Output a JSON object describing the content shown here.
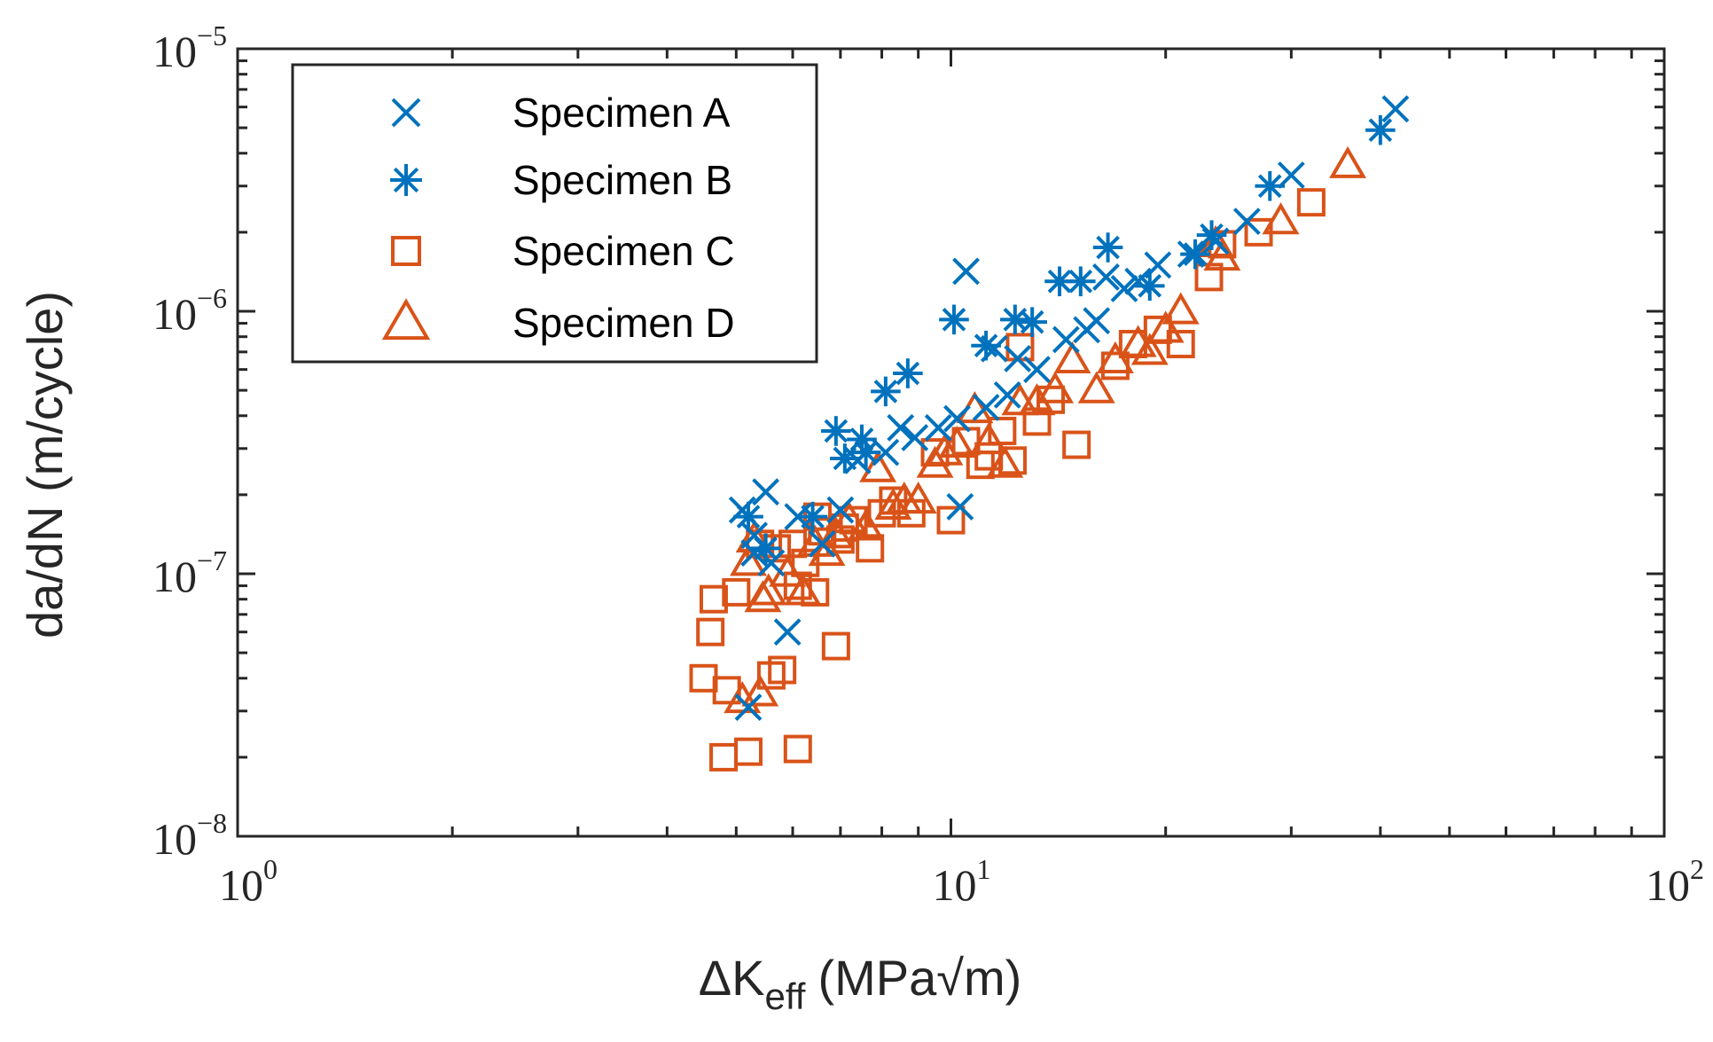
{
  "chart_data": {
    "type": "scatter",
    "title": "",
    "xlabel": {
      "main": "ΔK",
      "sub": "eff",
      "unit": "(MPa√m)"
    },
    "ylabel": "da/dN (m/cycle)",
    "xscale": "log",
    "yscale": "log",
    "xlim": [
      1,
      100
    ],
    "ylim": [
      1e-08,
      1e-05
    ],
    "xticks": [
      {
        "value": 1,
        "base": "10",
        "exp": "0"
      },
      {
        "value": 10,
        "base": "10",
        "exp": "1"
      },
      {
        "value": 100,
        "base": "10",
        "exp": "2"
      }
    ],
    "yticks": [
      {
        "value": 1e-08,
        "base": "10",
        "exp": "−8"
      },
      {
        "value": 1e-07,
        "base": "10",
        "exp": "−7"
      },
      {
        "value": 1e-06,
        "base": "10",
        "exp": "−6"
      },
      {
        "value": 1e-05,
        "base": "10",
        "exp": "−5"
      }
    ],
    "grid": false,
    "legend_position": "top-left",
    "series": [
      {
        "name": "Specimen A",
        "marker": "x",
        "color": "#0072BD",
        "x": [
          5.1,
          5.5,
          5.2,
          5.9,
          5.3,
          6.1,
          5.6,
          7.0,
          7.4,
          8.1,
          8.9,
          9.6,
          10.2,
          10.3,
          10.5,
          11.5,
          11.2,
          12.4,
          13.2,
          14.5,
          15.5,
          16.5,
          17.5,
          19.5,
          18.3,
          21.7,
          23.5,
          26.0,
          30.0,
          42.0,
          5.3,
          8.5,
          6.6,
          12.0,
          16.0
        ],
        "y": [
          1.75e-07,
          2.05e-07,
          3.1e-08,
          6e-08,
          1.4e-07,
          1.65e-07,
          1.1e-07,
          1.75e-07,
          2.7e-07,
          2.9e-07,
          3.3e-07,
          3.6e-07,
          3.9e-07,
          1.8e-07,
          1.42e-06,
          7.2e-07,
          4.3e-07,
          6.6e-07,
          6e-07,
          7.8e-07,
          8.5e-07,
          1.35e-06,
          1.22e-06,
          1.5e-06,
          1.3e-06,
          1.65e-06,
          1.85e-06,
          2.2e-06,
          3.3e-06,
          5.9e-06,
          1.2e-07,
          3.6e-07,
          1.3e-07,
          4.8e-07,
          9.2e-07
        ]
      },
      {
        "name": "Specimen B",
        "marker": "asterisk",
        "color": "#0072BD",
        "x": [
          5.2,
          5.5,
          6.4,
          6.9,
          7.1,
          7.5,
          8.1,
          8.7,
          10.1,
          11.2,
          12.3,
          13.0,
          14.2,
          15.2,
          16.6,
          19.0,
          22.0,
          23.2,
          28.0,
          40.0,
          7.6
        ],
        "y": [
          1.65e-07,
          1.25e-07,
          1.65e-07,
          3.5e-07,
          2.75e-07,
          3.25e-07,
          4.95e-07,
          5.8e-07,
          9.3e-07,
          7.4e-07,
          9.3e-07,
          9.1e-07,
          1.3e-06,
          1.3e-06,
          1.75e-06,
          1.25e-06,
          1.65e-06,
          1.95e-06,
          3e-06,
          4.9e-06,
          2.9e-07
        ]
      },
      {
        "name": "Specimen C",
        "marker": "square",
        "color": "#D95319",
        "x": [
          4.5,
          4.6,
          4.65,
          4.8,
          4.85,
          5.0,
          5.2,
          5.4,
          5.6,
          5.7,
          5.8,
          6.0,
          6.1,
          6.1,
          6.25,
          6.45,
          6.5,
          6.6,
          6.9,
          7.0,
          7.1,
          7.3,
          7.7,
          8.0,
          8.3,
          8.8,
          9.5,
          10.0,
          10.5,
          11.0,
          11.3,
          11.8,
          12.2,
          12.5,
          13.2,
          13.8,
          15.0,
          17.0,
          18.0,
          19.5,
          21.0,
          23.0,
          24.0,
          27.0,
          32.0
        ],
        "y": [
          4e-08,
          6e-08,
          8e-08,
          2e-08,
          3.6e-08,
          8.5e-08,
          2.1e-08,
          1.3e-07,
          4.1e-08,
          1.25e-07,
          4.3e-08,
          1.3e-07,
          2.15e-08,
          9e-08,
          1.1e-07,
          8.5e-08,
          1.65e-07,
          1.45e-07,
          5.3e-08,
          1.35e-07,
          1.5e-07,
          1.6e-07,
          1.25e-07,
          1.7e-07,
          1.9e-07,
          1.7e-07,
          2.9e-07,
          1.6e-07,
          3.2e-07,
          2.6e-07,
          2.8e-07,
          3.5e-07,
          2.7e-07,
          7.3e-07,
          3.8e-07,
          4.6e-07,
          3.1e-07,
          6.2e-07,
          7.5e-07,
          8.5e-07,
          7.5e-07,
          1.35e-06,
          1.8e-06,
          2e-06,
          2.6e-06
        ],
        "filled": false
      },
      {
        "name": "Specimen D",
        "marker": "triangle",
        "color": "#D95319",
        "x": [
          5.1,
          5.2,
          5.3,
          5.4,
          5.45,
          5.55,
          5.9,
          6.2,
          6.45,
          6.7,
          6.9,
          7.2,
          7.6,
          7.9,
          8.3,
          8.6,
          9.0,
          9.5,
          9.8,
          10.2,
          10.8,
          11.3,
          11.9,
          12.5,
          13.2,
          14.0,
          14.8,
          16.0,
          17.0,
          18.3,
          19.0,
          20.0,
          21.0,
          23.5,
          24.0,
          29.0,
          36.0
        ],
        "y": [
          3.3e-08,
          1.1e-07,
          1.35e-07,
          3.5e-08,
          8e-08,
          8.5e-08,
          1e-07,
          8.5e-08,
          1.3e-07,
          1.2e-07,
          1.4e-07,
          1.6e-07,
          1.5e-07,
          2.5e-07,
          1.8e-07,
          1.9e-07,
          1.9e-07,
          2.6e-07,
          2.9e-07,
          3.1e-07,
          4.2e-07,
          3.2e-07,
          2.6e-07,
          4.5e-07,
          4.5e-07,
          5e-07,
          6.5e-07,
          5e-07,
          6.5e-07,
          7.5e-07,
          7e-07,
          8.5e-07,
          1e-06,
          1.8e-06,
          1.6e-06,
          2.2e-06,
          3.6e-06
        ],
        "filled": false
      }
    ]
  }
}
